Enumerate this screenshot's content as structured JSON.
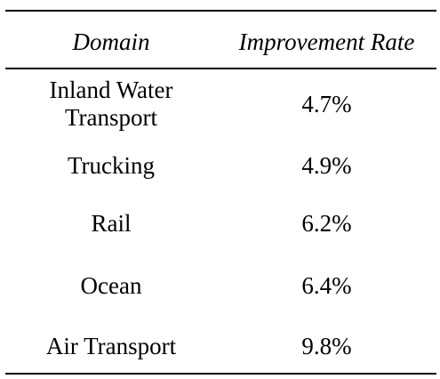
{
  "table": {
    "headers": [
      "Domain",
      "Improvement Rate"
    ],
    "rows": [
      {
        "domain": "Inland Water Transport",
        "rate": "4.7%"
      },
      {
        "domain": "Trucking",
        "rate": "4.9%"
      },
      {
        "domain": "Rail",
        "rate": "6.2%"
      },
      {
        "domain": "Ocean",
        "rate": "6.4%"
      },
      {
        "domain": "Air Transport",
        "rate": "9.8%"
      }
    ]
  }
}
